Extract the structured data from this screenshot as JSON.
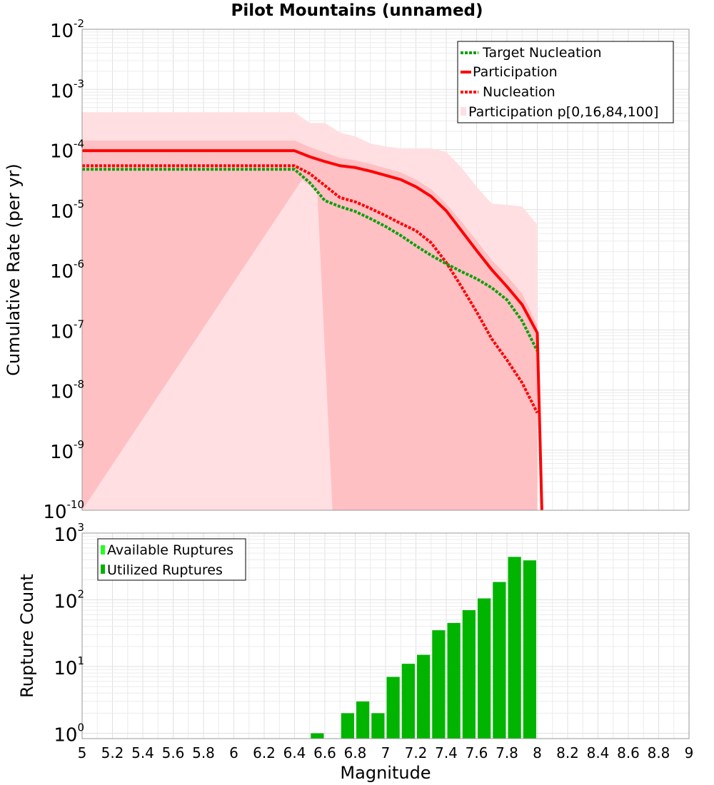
{
  "colors": {
    "participation": "#ff0000",
    "nucleation": "#ff0000",
    "target": "#0aa00a",
    "band_outer": "#ffdfe2",
    "band_inner": "#ffc0c4",
    "bar_utilized": "#00b400",
    "bar_available": "#22ff22"
  },
  "chart_data": [
    {
      "type": "line",
      "title": "Pilot Mountains (unnamed)",
      "xlabel": "Magnitude",
      "ylabel": "Cumulative Rate (per yr)",
      "xlim": [
        5,
        9
      ],
      "ylim_log10": [
        -10,
        -2
      ],
      "y_scale": "log",
      "y_ticks": [
        {
          "base": "10",
          "exp": "-2"
        },
        {
          "base": "10",
          "exp": "-3"
        },
        {
          "base": "10",
          "exp": "-4"
        },
        {
          "base": "10",
          "exp": "-5"
        },
        {
          "base": "10",
          "exp": "-6"
        },
        {
          "base": "10",
          "exp": "-7"
        },
        {
          "base": "10",
          "exp": "-8"
        },
        {
          "base": "10",
          "exp": "-9"
        },
        {
          "base": "10",
          "exp": "-10"
        }
      ],
      "legend_position": "top-right",
      "legend": [
        "Target Nucleation",
        "Participation",
        "Nucleation",
        "Participation p[0,16,84,100]"
      ],
      "series": [
        {
          "name": "Target Nucleation",
          "style": "dotted",
          "x": [
            5.0,
            6.4,
            6.5,
            6.6,
            6.7,
            6.8,
            6.9,
            7.0,
            7.1,
            7.2,
            7.3,
            7.4,
            7.5,
            7.6,
            7.7,
            7.8,
            7.9,
            8.0
          ],
          "log10_y": [
            -4.33,
            -4.33,
            -4.55,
            -4.85,
            -4.95,
            -5.03,
            -5.15,
            -5.28,
            -5.43,
            -5.6,
            -5.76,
            -5.9,
            -6.03,
            -6.15,
            -6.3,
            -6.5,
            -6.85,
            -7.35
          ]
        },
        {
          "name": "Participation",
          "style": "solid",
          "x": [
            5.0,
            6.4,
            6.5,
            6.6,
            6.7,
            6.8,
            6.9,
            7.0,
            7.1,
            7.2,
            7.3,
            7.4,
            7.5,
            7.6,
            7.7,
            7.8,
            7.9,
            8.0,
            8.03
          ],
          "log10_y": [
            -4.02,
            -4.02,
            -4.12,
            -4.2,
            -4.27,
            -4.3,
            -4.36,
            -4.43,
            -4.5,
            -4.62,
            -4.78,
            -5.02,
            -5.35,
            -5.68,
            -6.0,
            -6.28,
            -6.58,
            -7.05,
            -10.0
          ]
        },
        {
          "name": "Nucleation",
          "style": "dotted",
          "x": [
            5.0,
            6.4,
            6.5,
            6.6,
            6.7,
            6.8,
            6.9,
            7.0,
            7.1,
            7.2,
            7.3,
            7.4,
            7.5,
            7.6,
            7.7,
            7.8,
            7.9,
            8.0
          ],
          "log10_y": [
            -4.27,
            -4.27,
            -4.4,
            -4.6,
            -4.8,
            -4.87,
            -4.98,
            -5.1,
            -5.23,
            -5.35,
            -5.55,
            -5.88,
            -6.28,
            -6.7,
            -7.15,
            -7.5,
            -7.88,
            -8.38
          ]
        }
      ],
      "bands": [
        {
          "name": "p0-p100",
          "x": [
            5.0,
            6.4,
            6.5,
            6.6,
            6.7,
            6.8,
            6.9,
            7.0,
            7.1,
            7.2,
            7.3,
            7.4,
            7.5,
            7.6,
            7.7,
            7.8,
            7.9,
            8.0
          ],
          "log10_upper": [
            -3.38,
            -3.38,
            -3.56,
            -3.56,
            -3.72,
            -3.78,
            -3.9,
            -3.95,
            -3.98,
            -3.98,
            -3.98,
            -4.04,
            -4.3,
            -4.62,
            -4.9,
            -4.92,
            -4.95,
            -5.25
          ],
          "lower_x": [
            5.0,
            6.64,
            6.65,
            8.03
          ],
          "log10_lower": [
            -10.0,
            -10.0,
            -10.0,
            -10.0
          ]
        },
        {
          "name": "p16-p84",
          "x": [
            5.0,
            6.4,
            6.5,
            6.6,
            6.7,
            6.8,
            6.9,
            7.0,
            7.1,
            7.2,
            7.3,
            7.4,
            7.5,
            7.6,
            7.7,
            7.8,
            7.9,
            8.0
          ],
          "log10_upper": [
            -3.85,
            -3.85,
            -3.96,
            -4.05,
            -4.14,
            -4.18,
            -4.24,
            -4.31,
            -4.38,
            -4.5,
            -4.66,
            -4.9,
            -5.2,
            -5.52,
            -5.84,
            -6.1,
            -6.4,
            -6.92
          ],
          "lower_x": [
            5.0,
            6.45,
            6.55,
            6.65
          ],
          "log10_lower": [
            -10.0,
            -4.5,
            -4.7,
            -10.0
          ]
        }
      ]
    },
    {
      "type": "bar",
      "xlabel": "Magnitude",
      "ylabel": "Rupture Count",
      "xlim": [
        5,
        9
      ],
      "ylim_log10": [
        -0.08,
        3
      ],
      "y_scale": "log",
      "y_ticks": [
        {
          "base": "10",
          "exp": "3"
        },
        {
          "base": "10",
          "exp": "2"
        },
        {
          "base": "10",
          "exp": "1"
        },
        {
          "base": "10",
          "exp": "0"
        }
      ],
      "x_ticks": [
        "5",
        "5.2",
        "5.4",
        "5.6",
        "5.8",
        "6",
        "6.2",
        "6.4",
        "6.6",
        "6.8",
        "7",
        "7.2",
        "7.4",
        "7.6",
        "7.8",
        "8",
        "8.2",
        "8.4",
        "8.6",
        "8.8",
        "9"
      ],
      "legend_position": "top-left",
      "legend": [
        "Available Ruptures",
        "Utilized Ruptures"
      ],
      "bin_width": 0.1,
      "bin_centers": [
        6.55,
        6.75,
        6.85,
        6.95,
        7.05,
        7.15,
        7.25,
        7.35,
        7.45,
        7.55,
        7.65,
        7.75,
        7.85,
        7.95
      ],
      "values": [
        1,
        2,
        3,
        2,
        7,
        11,
        15,
        35,
        45,
        70,
        105,
        185,
        440,
        390
      ]
    }
  ]
}
